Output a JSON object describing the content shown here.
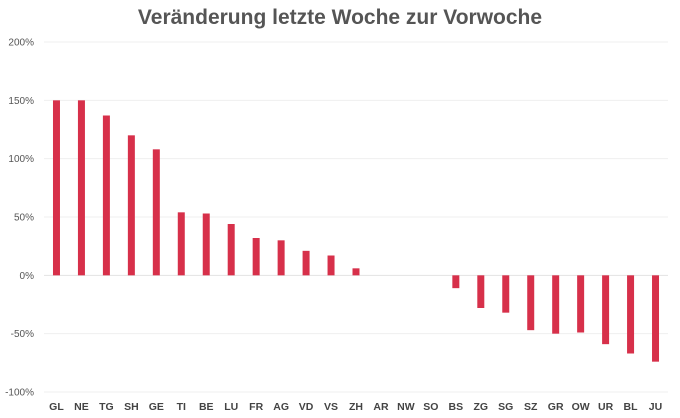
{
  "chart_data": {
    "type": "bar",
    "title": "Veränderung letzte Woche zur Vorwoche",
    "xlabel": "",
    "ylabel": "",
    "ylim": [
      -100,
      200
    ],
    "yticks": [
      200,
      150,
      100,
      50,
      0,
      -50,
      -100
    ],
    "ytick_labels": [
      "200%",
      "150%",
      "100%",
      "50%",
      "0%",
      "-50%",
      "-100%"
    ],
    "grid": true,
    "bar_color": "#d7304a",
    "categories": [
      "GL",
      "NE",
      "TG",
      "SH",
      "GE",
      "TI",
      "BE",
      "LU",
      "FR",
      "AG",
      "VD",
      "VS",
      "ZH",
      "AR",
      "NW",
      "SO",
      "BS",
      "ZG",
      "SG",
      "SZ",
      "GR",
      "OW",
      "UR",
      "BL",
      "JU"
    ],
    "values": [
      150,
      150,
      137,
      120,
      108,
      54,
      53,
      44,
      32,
      30,
      21,
      17,
      6,
      0,
      0,
      0,
      -11,
      -28,
      -32,
      -47,
      -50,
      -49,
      -59,
      -67,
      -74
    ]
  }
}
